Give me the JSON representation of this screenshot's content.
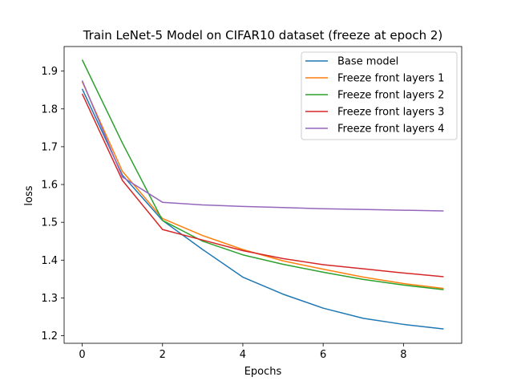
{
  "chart_data": {
    "type": "line",
    "title": "Train LeNet-5 Model on CIFAR10 dataset (freeze at epoch 2)",
    "xlabel": "Epochs",
    "ylabel": "loss",
    "xlim": [
      -0.45,
      9.45
    ],
    "ylim": [
      1.18,
      1.965
    ],
    "xticks": [
      0,
      2,
      4,
      6,
      8
    ],
    "yticks": [
      1.2,
      1.3,
      1.4,
      1.5,
      1.6,
      1.7,
      1.8,
      1.9
    ],
    "grid": false,
    "legend_position": "top-right",
    "x": [
      0,
      1,
      2,
      3,
      4,
      5,
      6,
      7,
      8,
      9
    ],
    "series": [
      {
        "name": "Base model",
        "color": "#1f77b4",
        "values": [
          1.853,
          1.625,
          1.505,
          1.428,
          1.355,
          1.31,
          1.273,
          1.246,
          1.23,
          1.218
        ]
      },
      {
        "name": "Freeze front layers 1",
        "color": "#ff7f0e",
        "values": [
          1.872,
          1.635,
          1.51,
          1.465,
          1.428,
          1.398,
          1.376,
          1.355,
          1.338,
          1.325
        ]
      },
      {
        "name": "Freeze front layers 2",
        "color": "#2ca02c",
        "values": [
          1.93,
          1.71,
          1.505,
          1.45,
          1.414,
          1.389,
          1.368,
          1.349,
          1.334,
          1.322
        ]
      },
      {
        "name": "Freeze front layers 3",
        "color": "#d62728",
        "values": [
          1.84,
          1.611,
          1.481,
          1.453,
          1.425,
          1.404,
          1.388,
          1.377,
          1.366,
          1.356
        ]
      },
      {
        "name": "Freeze front layers 4",
        "color": "#9467bd",
        "values": [
          1.875,
          1.62,
          1.553,
          1.546,
          1.542,
          1.539,
          1.536,
          1.534,
          1.532,
          1.53
        ]
      }
    ]
  }
}
